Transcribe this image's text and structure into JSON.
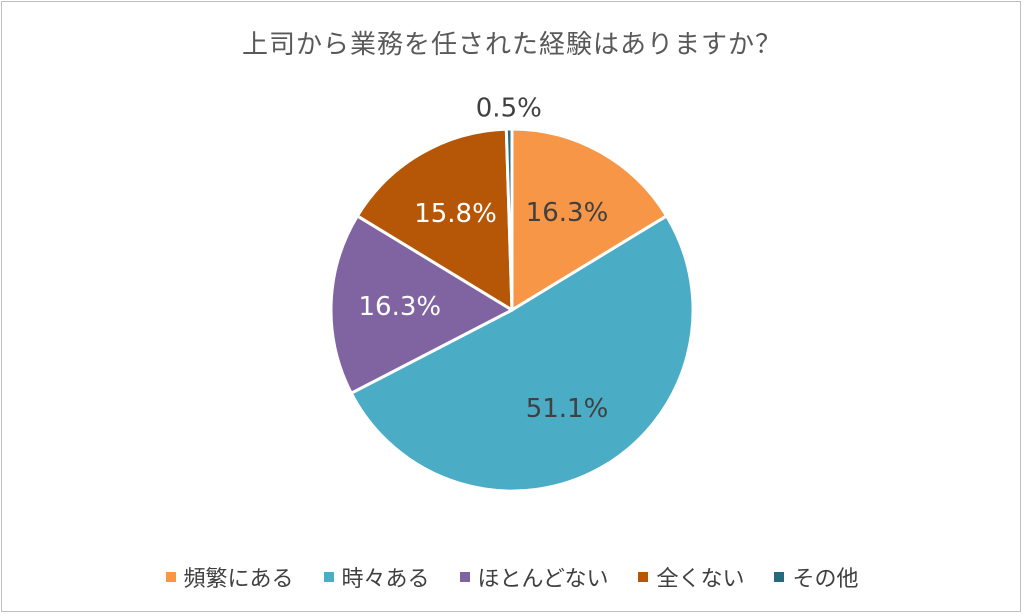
{
  "chart_data": {
    "type": "pie",
    "title": "上司から業務を任された経験はありますか？",
    "categories": [
      "頻繁にある",
      "時々ある",
      "ほとんどない",
      "全くない",
      "その他"
    ],
    "values": [
      16.3,
      51.1,
      16.3,
      15.8,
      0.5
    ],
    "data_labels": [
      "16.3%",
      "51.1%",
      "16.3%",
      "15.8%",
      "0.5%"
    ],
    "colors": [
      "#F79646",
      "#4BACC6",
      "#8064A2",
      "#B65708",
      "#276A7C"
    ],
    "legend_position": "bottom",
    "start_angle": "12 o'clock, clockwise"
  }
}
